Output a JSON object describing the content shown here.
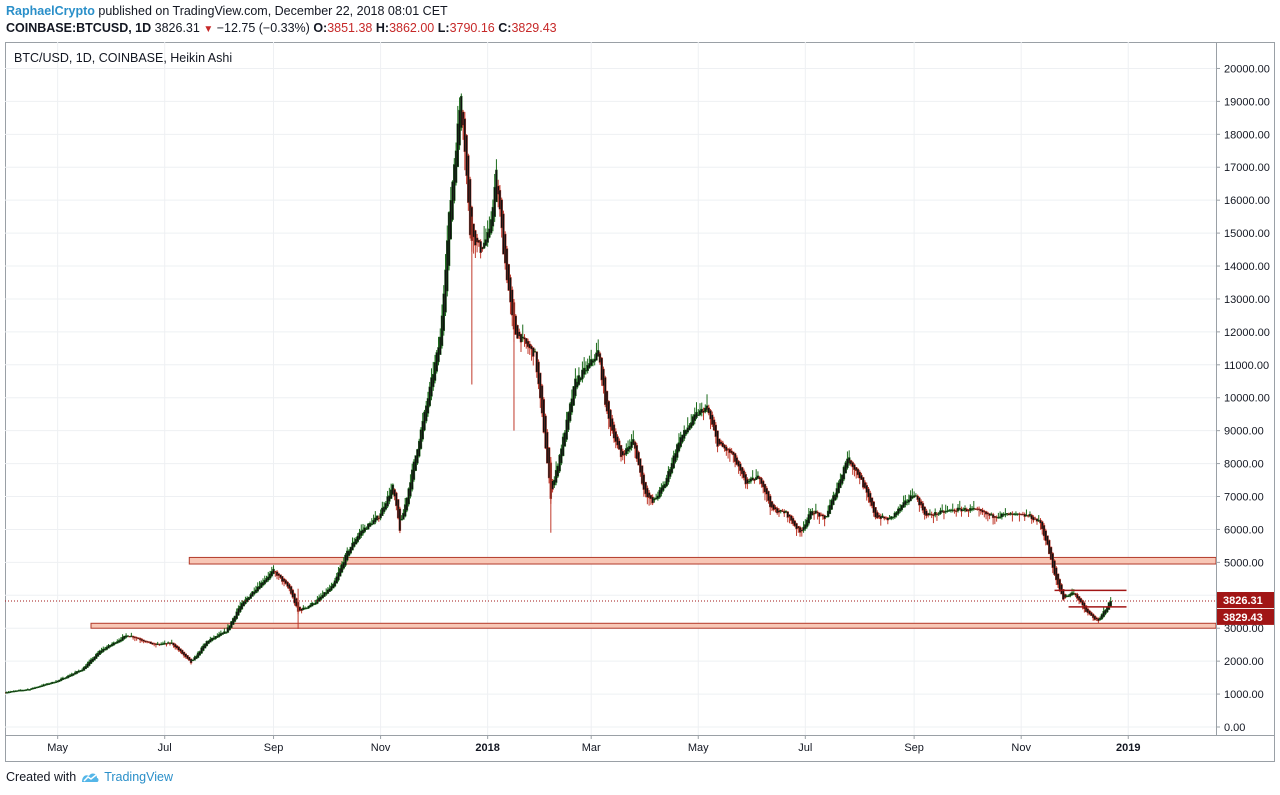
{
  "header": {
    "author": "RaphaelCrypto",
    "published_text": " published on TradingView.com, December 22, 2018 08:01 CET",
    "symbol": "COINBASE:BTCUSD, 1D",
    "last": "3826.31",
    "change_arrow": "▼",
    "change": "−12.75 (−0.33%)",
    "open_label": "O:",
    "open": "3851.38",
    "high_label": "H:",
    "high": "3862.00",
    "low_label": "L:",
    "low": "3790.16",
    "close_label": "C:",
    "close": "3829.43"
  },
  "chart_title": "BTC/USD, 1D, COINBASE, Heikin Ashi",
  "footer": {
    "created_with": "Created with",
    "brand": "TradingView"
  },
  "colors": {
    "up": "#1b6b1b",
    "down": "#c0392b",
    "body_dark": "#111111",
    "zone_fill": "#f8c7b6",
    "zone_stroke": "#b23a2a",
    "price_tag": "#a11515",
    "accent": "#2a8fc9"
  },
  "chart_data": {
    "type": "candlestick-heikin-ashi",
    "x_range": [
      "2017-04-01",
      "2019-02-20"
    ],
    "y_range": [
      0,
      20500
    ],
    "y_ticks": [
      "20000.00",
      "19000.00",
      "18000.00",
      "17000.00",
      "16000.00",
      "15000.00",
      "14000.00",
      "13000.00",
      "12000.00",
      "11000.00",
      "10000.00",
      "9000.00",
      "8000.00",
      "7000.00",
      "6000.00",
      "5000.00",
      "4000.00",
      "3000.00",
      "2000.00",
      "1000.00",
      "0.00"
    ],
    "x_ticks": [
      {
        "date": "2017-05-01",
        "label": "May",
        "bold": false
      },
      {
        "date": "2017-07-01",
        "label": "Jul",
        "bold": false
      },
      {
        "date": "2017-09-01",
        "label": "Sep",
        "bold": false
      },
      {
        "date": "2017-11-01",
        "label": "Nov",
        "bold": false
      },
      {
        "date": "2018-01-01",
        "label": "2018",
        "bold": true
      },
      {
        "date": "2018-03-01",
        "label": "Mar",
        "bold": false
      },
      {
        "date": "2018-05-01",
        "label": "May",
        "bold": false
      },
      {
        "date": "2018-07-01",
        "label": "Jul",
        "bold": false
      },
      {
        "date": "2018-09-01",
        "label": "Sep",
        "bold": false
      },
      {
        "date": "2018-11-01",
        "label": "Nov",
        "bold": false
      },
      {
        "date": "2019-01-01",
        "label": "2019",
        "bold": true
      }
    ],
    "close_path": [
      [
        "2017-04-01",
        1050
      ],
      [
        "2017-04-15",
        1150
      ],
      [
        "2017-05-01",
        1400
      ],
      [
        "2017-05-15",
        1750
      ],
      [
        "2017-05-25",
        2300
      ],
      [
        "2017-06-10",
        2800
      ],
      [
        "2017-06-25",
        2500
      ],
      [
        "2017-07-05",
        2550
      ],
      [
        "2017-07-16",
        1950
      ],
      [
        "2017-07-25",
        2600
      ],
      [
        "2017-08-05",
        2900
      ],
      [
        "2017-08-12",
        3600
      ],
      [
        "2017-08-20",
        4100
      ],
      [
        "2017-09-01",
        4750
      ],
      [
        "2017-09-10",
        4200
      ],
      [
        "2017-09-15",
        3500
      ],
      [
        "2017-09-25",
        3800
      ],
      [
        "2017-10-05",
        4300
      ],
      [
        "2017-10-13",
        5300
      ],
      [
        "2017-10-20",
        5900
      ],
      [
        "2017-10-31",
        6400
      ],
      [
        "2017-11-08",
        7300
      ],
      [
        "2017-11-12",
        6000
      ],
      [
        "2017-11-20",
        8000
      ],
      [
        "2017-11-28",
        10000
      ],
      [
        "2017-12-05",
        11800
      ],
      [
        "2017-12-10",
        15500
      ],
      [
        "2017-12-17",
        19300
      ],
      [
        "2017-12-22",
        15000
      ],
      [
        "2017-12-28",
        14500
      ],
      [
        "2018-01-02",
        15000
      ],
      [
        "2018-01-06",
        16800
      ],
      [
        "2018-01-10",
        14500
      ],
      [
        "2018-01-16",
        12000
      ],
      [
        "2018-01-20",
        11800
      ],
      [
        "2018-01-28",
        11300
      ],
      [
        "2018-02-02",
        9000
      ],
      [
        "2018-02-06",
        7000
      ],
      [
        "2018-02-12",
        8500
      ],
      [
        "2018-02-20",
        10500
      ],
      [
        "2018-02-28",
        11000
      ],
      [
        "2018-03-05",
        11400
      ],
      [
        "2018-03-10",
        9500
      ],
      [
        "2018-03-18",
        8200
      ],
      [
        "2018-03-25",
        8700
      ],
      [
        "2018-03-31",
        7200
      ],
      [
        "2018-04-05",
        6800
      ],
      [
        "2018-04-12",
        7400
      ],
      [
        "2018-04-20",
        8700
      ],
      [
        "2018-04-30",
        9500
      ],
      [
        "2018-05-06",
        9700
      ],
      [
        "2018-05-12",
        8600
      ],
      [
        "2018-05-20",
        8300
      ],
      [
        "2018-05-28",
        7400
      ],
      [
        "2018-06-05",
        7600
      ],
      [
        "2018-06-12",
        6600
      ],
      [
        "2018-06-20",
        6500
      ],
      [
        "2018-06-28",
        5900
      ],
      [
        "2018-07-05",
        6600
      ],
      [
        "2018-07-12",
        6300
      ],
      [
        "2018-07-20",
        7400
      ],
      [
        "2018-07-25",
        8200
      ],
      [
        "2018-08-01",
        7600
      ],
      [
        "2018-08-10",
        6400
      ],
      [
        "2018-08-18",
        6300
      ],
      [
        "2018-08-25",
        6700
      ],
      [
        "2018-09-01",
        7100
      ],
      [
        "2018-09-08",
        6400
      ],
      [
        "2018-09-15",
        6500
      ],
      [
        "2018-09-25",
        6600
      ],
      [
        "2018-10-05",
        6600
      ],
      [
        "2018-10-15",
        6400
      ],
      [
        "2018-10-25",
        6450
      ],
      [
        "2018-11-06",
        6400
      ],
      [
        "2018-11-12",
        6200
      ],
      [
        "2018-11-16",
        5500
      ],
      [
        "2018-11-20",
        4600
      ],
      [
        "2018-11-25",
        3900
      ],
      [
        "2018-12-01",
        4100
      ],
      [
        "2018-12-08",
        3500
      ],
      [
        "2018-12-15",
        3200
      ],
      [
        "2018-12-18",
        3500
      ],
      [
        "2018-12-22",
        3829.43
      ]
    ],
    "wick_events": [
      {
        "date": "2017-12-23",
        "low": 10400,
        "high": 15500
      },
      {
        "date": "2018-02-06",
        "low": 5900,
        "high": 8200
      },
      {
        "date": "2018-01-16",
        "low": 9000,
        "high": 13000
      },
      {
        "date": "2017-09-15",
        "low": 2980,
        "high": 4200
      }
    ],
    "zones": [
      {
        "from": "2017-07-15",
        "low": 4950,
        "high": 5150
      },
      {
        "from": "2017-05-20",
        "low": 3000,
        "high": 3150
      }
    ],
    "segments": [
      {
        "from": "2018-11-20",
        "to": "2018-12-31",
        "value": 4150
      },
      {
        "from": "2018-11-28",
        "to": "2018-12-31",
        "value": 3650
      }
    ],
    "price_line": 3826.31,
    "price_labels": [
      {
        "value": 3826.31,
        "text": "3826.31"
      },
      {
        "value": 3829.43,
        "text": "3829.43"
      }
    ]
  }
}
